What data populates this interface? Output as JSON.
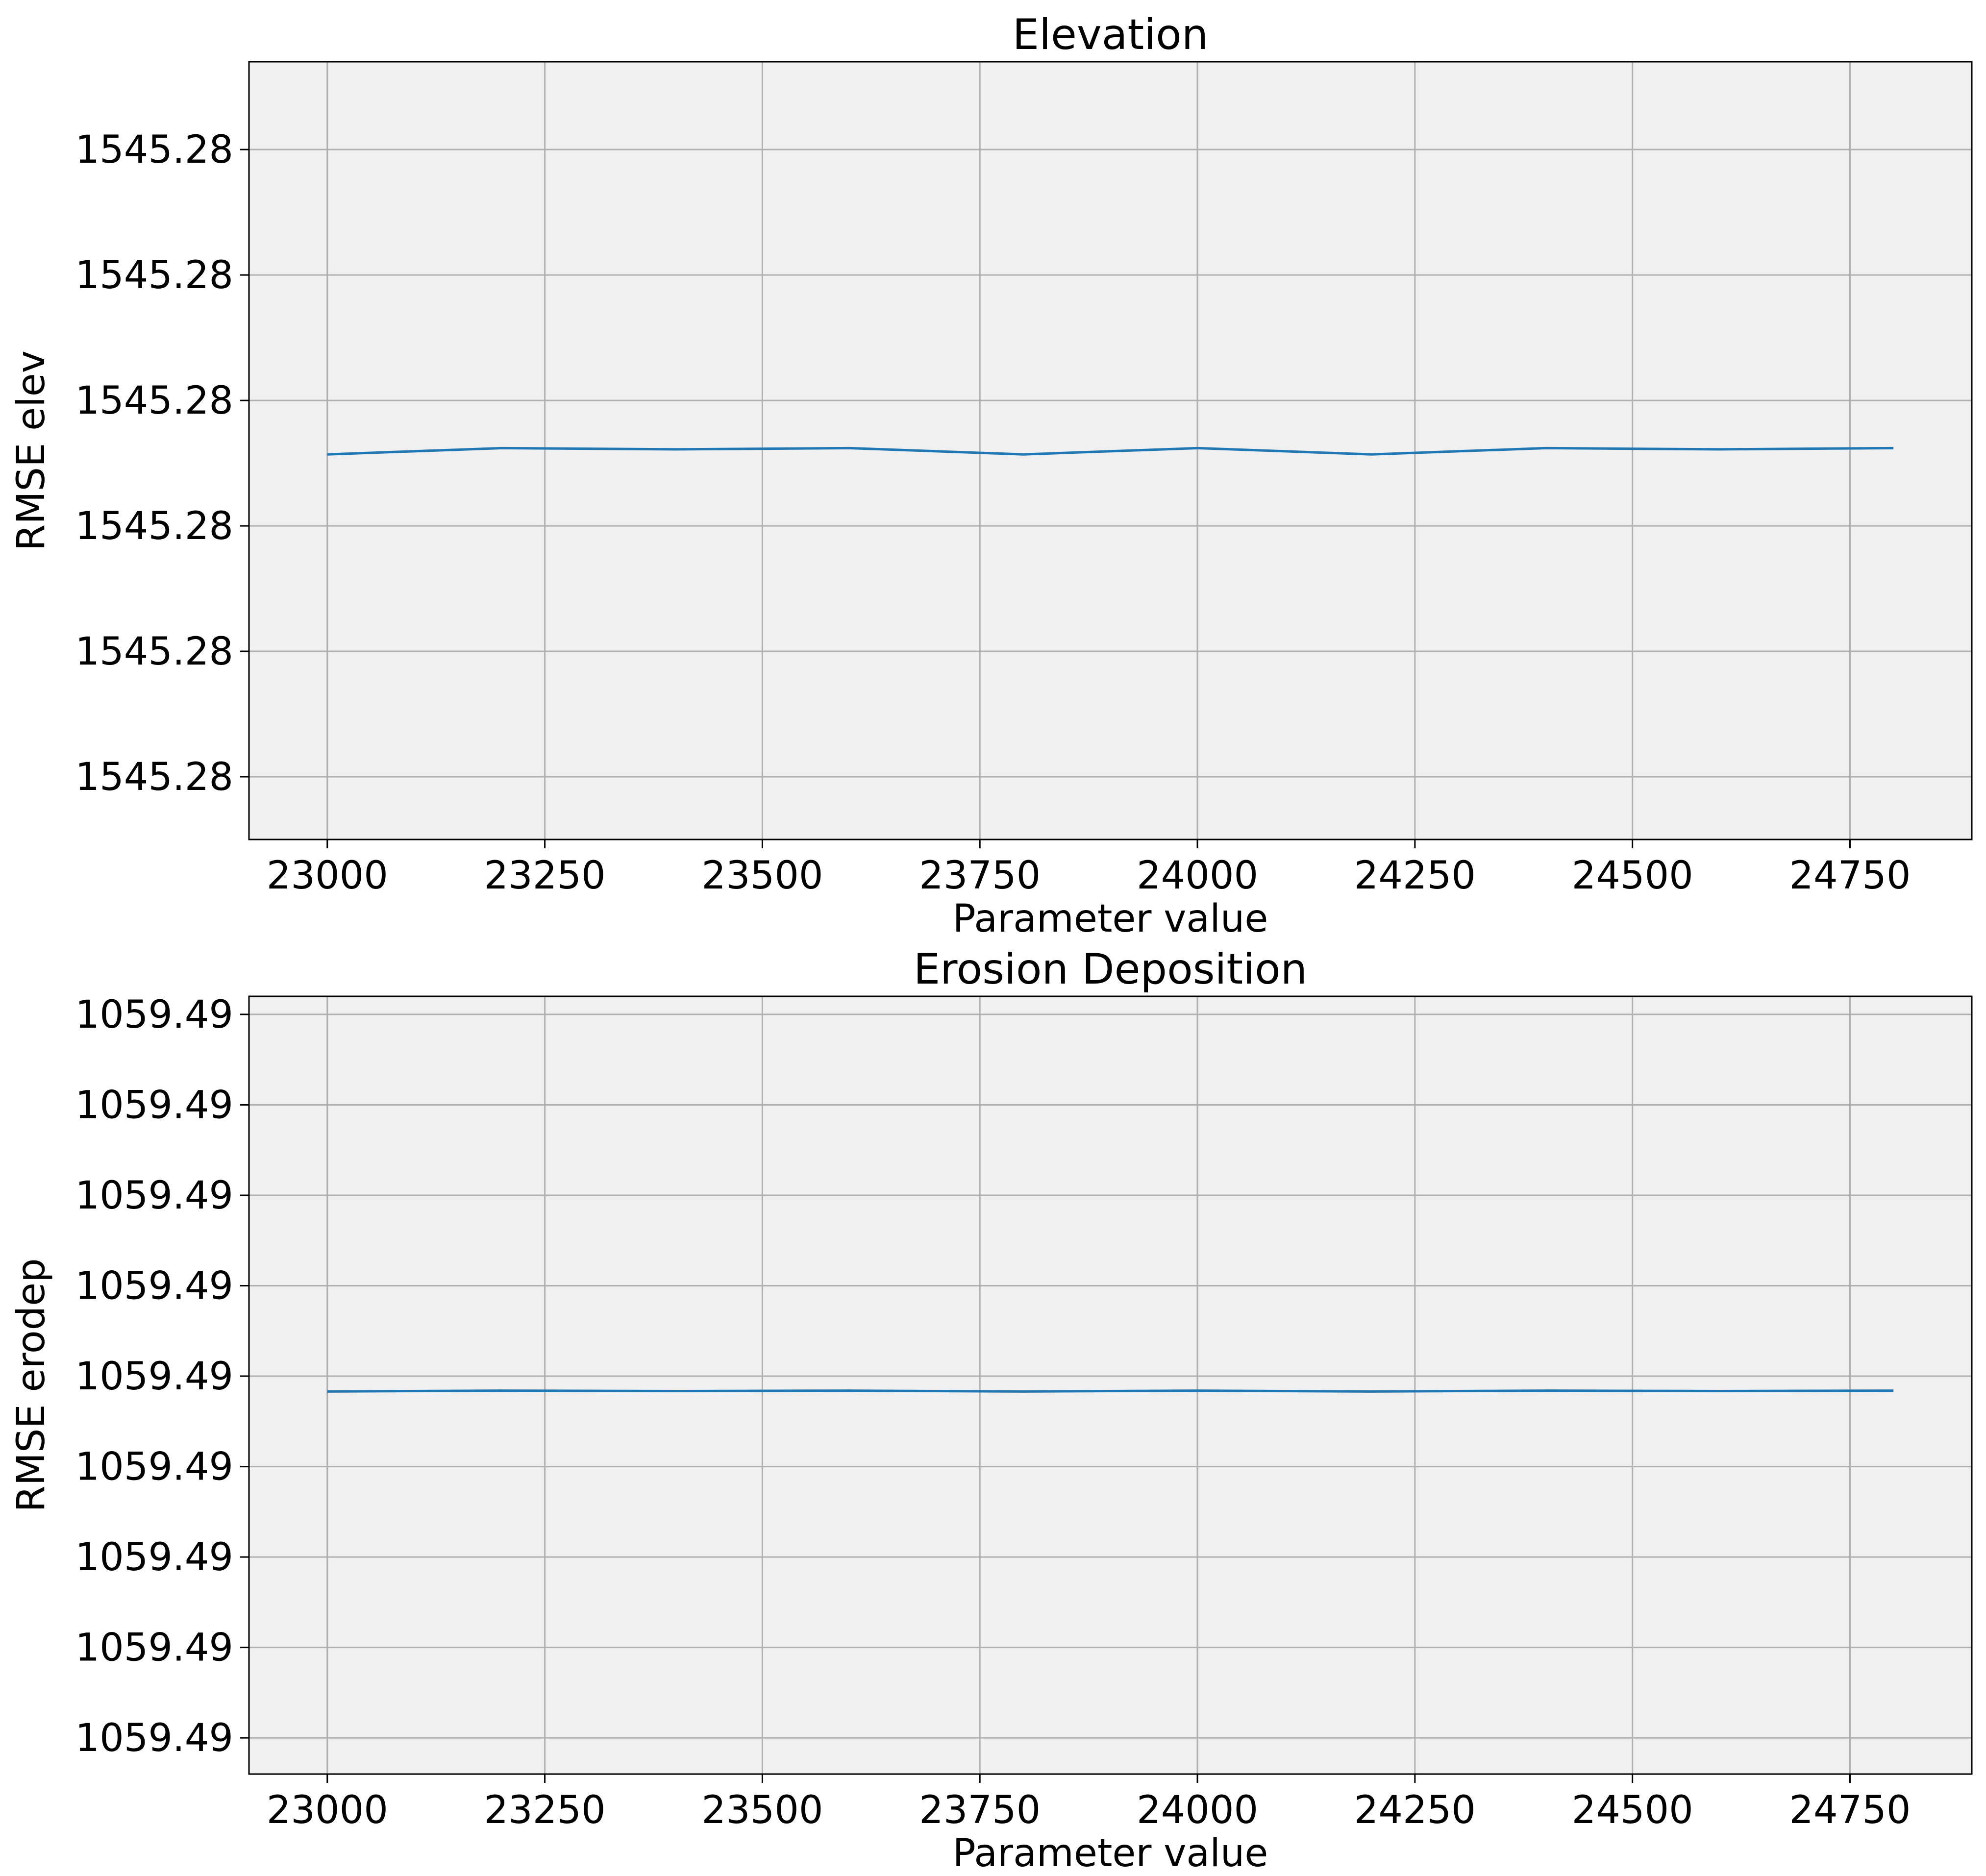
{
  "chart_data": [
    {
      "type": "line",
      "title": "Elevation",
      "xlabel": "Parameter value",
      "ylabel": "RMSE elev",
      "xlim": [
        22910,
        24890
      ],
      "ylim": [
        0,
        6.2
      ],
      "x_ticks": [
        23000,
        23250,
        23500,
        23750,
        24000,
        24250,
        24500,
        24750
      ],
      "y_ticks": [
        {
          "value": 0.5,
          "label": "1545.28"
        },
        {
          "value": 1.5,
          "label": "1545.28"
        },
        {
          "value": 2.5,
          "label": "1545.28"
        },
        {
          "value": 3.5,
          "label": "1545.28"
        },
        {
          "value": 4.5,
          "label": "1545.28"
        },
        {
          "value": 5.5,
          "label": "1545.28"
        }
      ],
      "grid": true,
      "series": [
        {
          "color": "#1f77b4",
          "x": [
            23000,
            23200,
            23400,
            23600,
            23800,
            24000,
            24200,
            24400,
            24600,
            24800
          ],
          "y": [
            3.07,
            3.12,
            3.11,
            3.12,
            3.07,
            3.12,
            3.07,
            3.12,
            3.11,
            3.12
          ]
        }
      ]
    },
    {
      "type": "line",
      "title": "Erosion Deposition",
      "xlabel": "Parameter value",
      "ylabel": "RMSE erodep",
      "xlim": [
        22910,
        24890
      ],
      "ylim": [
        0,
        8.6
      ],
      "x_ticks": [
        23000,
        23250,
        23500,
        23750,
        24000,
        24250,
        24500,
        24750
      ],
      "y_ticks": [
        {
          "value": 0.4,
          "label": "1059.49"
        },
        {
          "value": 1.4,
          "label": "1059.49"
        },
        {
          "value": 2.4,
          "label": "1059.49"
        },
        {
          "value": 3.4,
          "label": "1059.49"
        },
        {
          "value": 4.4,
          "label": "1059.49"
        },
        {
          "value": 5.4,
          "label": "1059.49"
        },
        {
          "value": 6.4,
          "label": "1059.49"
        },
        {
          "value": 7.4,
          "label": "1059.49"
        },
        {
          "value": 8.4,
          "label": "1059.49"
        }
      ],
      "grid": true,
      "series": [
        {
          "color": "#1f77b4",
          "x": [
            23000,
            23200,
            23400,
            23600,
            23800,
            24000,
            24200,
            24400,
            24600,
            24800
          ],
          "y": [
            4.23,
            4.24,
            4.235,
            4.24,
            4.23,
            4.24,
            4.23,
            4.24,
            4.235,
            4.24
          ]
        }
      ]
    }
  ]
}
